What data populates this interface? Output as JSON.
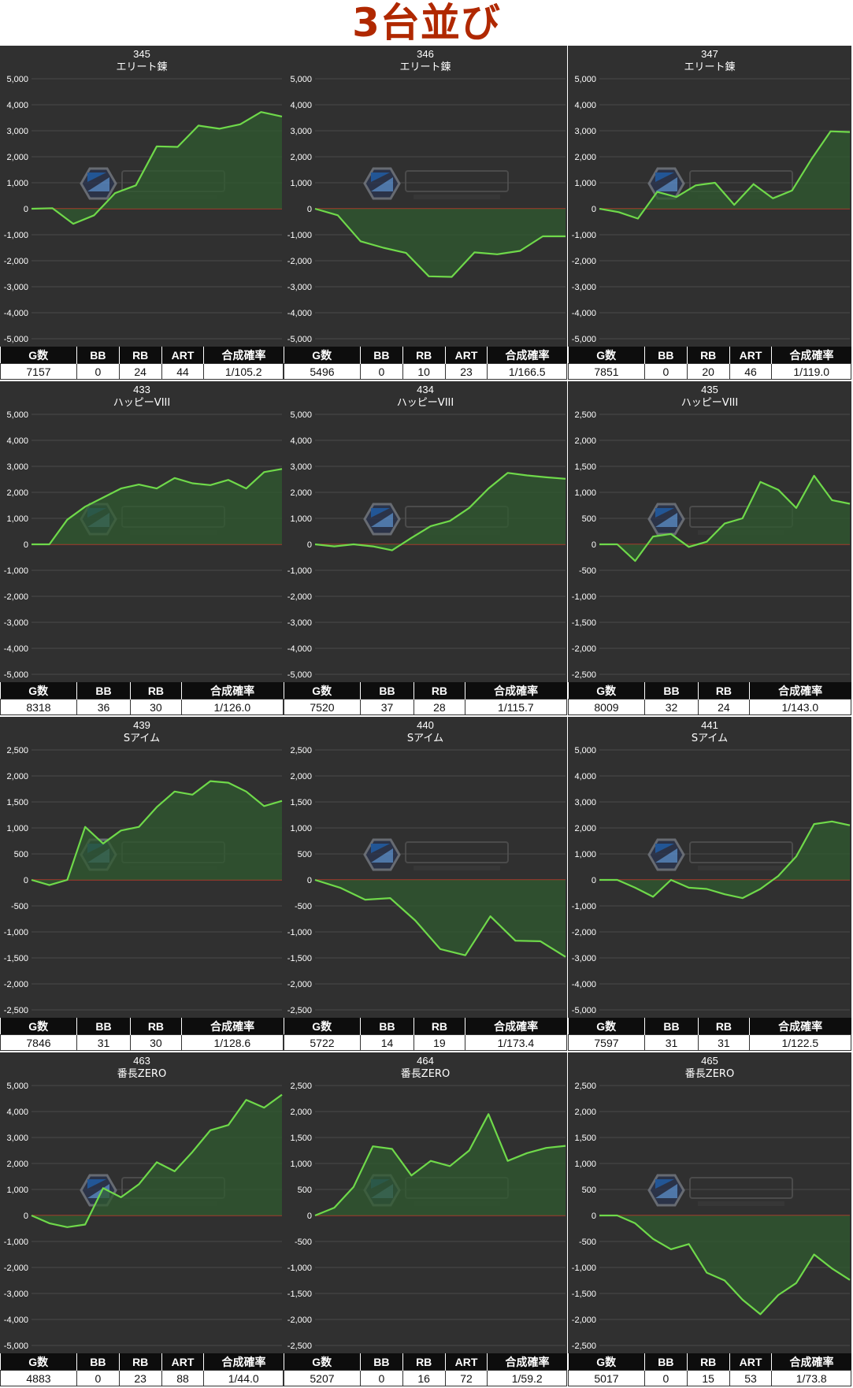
{
  "title": "3台並び",
  "colors": {
    "panel_bg": "#303030",
    "line": "#6fd94a",
    "fill": "#2f5a2f",
    "zero_line": "#c0392b",
    "title": "#b02800"
  },
  "panels": [
    {
      "machine_no": "345",
      "model": "エリート錬",
      "columns": [
        "G数",
        "BB",
        "RB",
        "ART",
        "合成確率"
      ],
      "values": [
        "7157",
        "0",
        "24",
        "44",
        "1/105.2"
      ],
      "chart_data": {
        "type": "area",
        "ylim": [
          -5000,
          5000
        ],
        "yticks": [
          "5,000",
          "4,000",
          "3,000",
          "2,000",
          "1,000",
          "0",
          "-1,000",
          "-2,000",
          "-3,000",
          "-4,000",
          "-5,000"
        ],
        "y": [
          0,
          20,
          -580,
          -250,
          600,
          900,
          2400,
          2380,
          3200,
          3080,
          3250,
          3720,
          3550
        ]
      }
    },
    {
      "machine_no": "346",
      "model": "エリート錬",
      "columns": [
        "G数",
        "BB",
        "RB",
        "ART",
        "合成確率"
      ],
      "values": [
        "5496",
        "0",
        "10",
        "23",
        "1/166.5"
      ],
      "chart_data": {
        "type": "area",
        "ylim": [
          -5000,
          5000
        ],
        "yticks": [
          "5,000",
          "4,000",
          "3,000",
          "2,000",
          "1,000",
          "0",
          "-1,000",
          "-2,000",
          "-3,000",
          "-4,000",
          "-5,000"
        ],
        "y": [
          0,
          -250,
          -1250,
          -1500,
          -1700,
          -2600,
          -2620,
          -1680,
          -1750,
          -1620,
          -1060,
          -1060
        ]
      }
    },
    {
      "machine_no": "347",
      "model": "エリート錬",
      "columns": [
        "G数",
        "BB",
        "RB",
        "ART",
        "合成確率"
      ],
      "values": [
        "7851",
        "0",
        "20",
        "46",
        "1/119.0"
      ],
      "chart_data": {
        "type": "area",
        "ylim": [
          -5000,
          5000
        ],
        "yticks": [
          "5,000",
          "4,000",
          "3,000",
          "2,000",
          "1,000",
          "0",
          "-1,000",
          "-2,000",
          "-3,000",
          "-4,000",
          "-5,000"
        ],
        "y": [
          0,
          -130,
          -380,
          650,
          450,
          900,
          1000,
          150,
          950,
          400,
          700,
          1900,
          2980,
          2950
        ]
      }
    },
    {
      "machine_no": "433",
      "model": "ハッピーVIII",
      "columns": [
        "G数",
        "BB",
        "RB",
        "合成確率"
      ],
      "values": [
        "8318",
        "36",
        "30",
        "1/126.0"
      ],
      "chart_data": {
        "type": "area",
        "ylim": [
          -5000,
          5000
        ],
        "yticks": [
          "5,000",
          "4,000",
          "3,000",
          "2,000",
          "1,000",
          "0",
          "-1,000",
          "-2,000",
          "-3,000",
          "-4,000",
          "-5,000"
        ],
        "y": [
          0,
          0,
          950,
          1450,
          1800,
          2150,
          2300,
          2150,
          2550,
          2350,
          2280,
          2480,
          2150,
          2780,
          2900
        ]
      }
    },
    {
      "machine_no": "434",
      "model": "ハッピーVIII",
      "columns": [
        "G数",
        "BB",
        "RB",
        "合成確率"
      ],
      "values": [
        "7520",
        "37",
        "28",
        "1/115.7"
      ],
      "chart_data": {
        "type": "area",
        "ylim": [
          -5000,
          5000
        ],
        "yticks": [
          "5,000",
          "4,000",
          "3,000",
          "2,000",
          "1,000",
          "0",
          "-1,000",
          "-2,000",
          "-3,000",
          "-4,000",
          "-5,000"
        ],
        "y": [
          0,
          -80,
          0,
          -80,
          -230,
          250,
          700,
          900,
          1400,
          2150,
          2750,
          2650,
          2580,
          2520
        ]
      }
    },
    {
      "machine_no": "435",
      "model": "ハッピーVIII",
      "columns": [
        "G数",
        "BB",
        "RB",
        "合成確率"
      ],
      "values": [
        "8009",
        "32",
        "24",
        "1/143.0"
      ],
      "chart_data": {
        "type": "area",
        "ylim": [
          -2500,
          2500
        ],
        "yticks": [
          "2,500",
          "2,000",
          "1,500",
          "1,000",
          "500",
          "0",
          "-500",
          "-1,000",
          "-1,500",
          "-2,000",
          "-2,500"
        ],
        "y": [
          0,
          0,
          -320,
          150,
          200,
          -50,
          50,
          400,
          500,
          1200,
          1050,
          700,
          1320,
          850,
          780
        ]
      }
    },
    {
      "machine_no": "439",
      "model": "Sアイム",
      "columns": [
        "G数",
        "BB",
        "RB",
        "合成確率"
      ],
      "values": [
        "7846",
        "31",
        "30",
        "1/128.6"
      ],
      "chart_data": {
        "type": "area",
        "ylim": [
          -2500,
          2500
        ],
        "yticks": [
          "2,500",
          "2,000",
          "1,500",
          "1,000",
          "500",
          "0",
          "-500",
          "-1,000",
          "-1,500",
          "-2,000",
          "-2,500"
        ],
        "y": [
          0,
          -100,
          0,
          1020,
          700,
          950,
          1020,
          1400,
          1700,
          1640,
          1900,
          1870,
          1700,
          1420,
          1520
        ]
      }
    },
    {
      "machine_no": "440",
      "model": "Sアイム",
      "columns": [
        "G数",
        "BB",
        "RB",
        "合成確率"
      ],
      "values": [
        "5722",
        "14",
        "19",
        "1/173.4"
      ],
      "chart_data": {
        "type": "area",
        "ylim": [
          -2500,
          2500
        ],
        "yticks": [
          "2,500",
          "2,000",
          "1,500",
          "1,000",
          "500",
          "0",
          "-500",
          "-1,000",
          "-1,500",
          "-2,000",
          "-2,500"
        ],
        "y": [
          0,
          -150,
          -380,
          -350,
          -780,
          -1330,
          -1450,
          -700,
          -1170,
          -1180,
          -1480
        ]
      }
    },
    {
      "machine_no": "441",
      "model": "Sアイム",
      "columns": [
        "G数",
        "BB",
        "RB",
        "合成確率"
      ],
      "values": [
        "7597",
        "31",
        "31",
        "1/122.5"
      ],
      "chart_data": {
        "type": "area",
        "ylim": [
          -5000,
          5000
        ],
        "yticks": [
          "5,000",
          "4,000",
          "3,000",
          "2,000",
          "1,000",
          "0",
          "-1,000",
          "-2,000",
          "-3,000",
          "-4,000",
          "-5,000"
        ],
        "y": [
          0,
          0,
          -300,
          -650,
          0,
          -300,
          -350,
          -550,
          -700,
          -350,
          150,
          900,
          2150,
          2250,
          2100
        ]
      }
    },
    {
      "machine_no": "463",
      "model": "番長ZERO",
      "columns": [
        "G数",
        "BB",
        "RB",
        "ART",
        "合成確率"
      ],
      "values": [
        "4883",
        "0",
        "23",
        "88",
        "1/44.0"
      ],
      "chart_data": {
        "type": "area",
        "ylim": [
          -5000,
          5000
        ],
        "yticks": [
          "5,000",
          "4,000",
          "3,000",
          "2,000",
          "1,000",
          "0",
          "-1,000",
          "-2,000",
          "-3,000",
          "-4,000",
          "-5,000"
        ],
        "y": [
          0,
          -300,
          -450,
          -350,
          1050,
          700,
          1200,
          2050,
          1700,
          2450,
          3280,
          3480,
          4450,
          4150,
          4650
        ]
      }
    },
    {
      "machine_no": "464",
      "model": "番長ZERO",
      "columns": [
        "G数",
        "BB",
        "RB",
        "ART",
        "合成確率"
      ],
      "values": [
        "5207",
        "0",
        "16",
        "72",
        "1/59.2"
      ],
      "chart_data": {
        "type": "area",
        "ylim": [
          -2500,
          2500
        ],
        "yticks": [
          "2,500",
          "2,000",
          "1,500",
          "1,000",
          "500",
          "0",
          "-500",
          "-1,000",
          "-1,500",
          "-2,000",
          "-2,500"
        ],
        "y": [
          0,
          150,
          550,
          1330,
          1280,
          770,
          1050,
          950,
          1250,
          1950,
          1050,
          1200,
          1300,
          1340
        ]
      }
    },
    {
      "machine_no": "465",
      "model": "番長ZERO",
      "columns": [
        "G数",
        "BB",
        "RB",
        "ART",
        "合成確率"
      ],
      "values": [
        "5017",
        "0",
        "15",
        "53",
        "1/73.8"
      ],
      "chart_data": {
        "type": "area",
        "ylim": [
          -2500,
          2500
        ],
        "yticks": [
          "2,500",
          "2,000",
          "1,500",
          "1,000",
          "500",
          "0",
          "-500",
          "-1,000",
          "-1,500",
          "-2,000",
          "-2,500"
        ],
        "y": [
          0,
          0,
          -150,
          -450,
          -650,
          -550,
          -1100,
          -1250,
          -1620,
          -1900,
          -1530,
          -1300,
          -750,
          -1020,
          -1240
        ]
      }
    }
  ]
}
